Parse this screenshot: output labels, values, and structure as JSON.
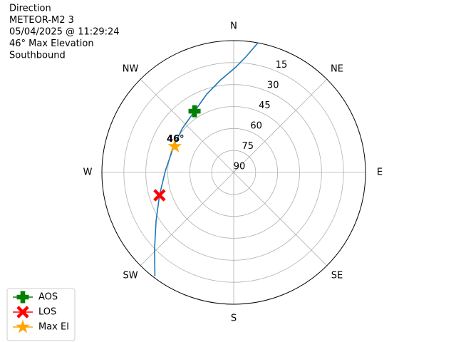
{
  "chart_data": {
    "type": "polar",
    "title_lines": [
      "Direction",
      "METEOR-M2 3",
      "05/04/2025 @ 11:29:24",
      "46° Max Elevation",
      "Southbound"
    ],
    "xlim": [
      0,
      360
    ],
    "xticks": [
      {
        "value": 0,
        "label": "N"
      },
      {
        "value": 45,
        "label": "NE"
      },
      {
        "value": 90,
        "label": "E"
      },
      {
        "value": 135,
        "label": "SE"
      },
      {
        "value": 180,
        "label": "S"
      },
      {
        "value": 225,
        "label": "SW"
      },
      {
        "value": 270,
        "label": "W"
      },
      {
        "value": 315,
        "label": "NW"
      }
    ],
    "ylim": [
      90,
      0
    ],
    "yticks": [
      15,
      30,
      45,
      60,
      75,
      90
    ],
    "grid": true,
    "legend": "lower left",
    "series": [
      {
        "color": "#1f77b4",
        "x": [
          10.6,
          6,
          0.8,
          352,
          341,
          327.4,
          310.7,
          293.8,
          271.2,
          252.9,
          238,
          225.8,
          217.2
        ],
        "values": [
          0,
          10.7,
          18.5,
          26.2,
          33.5,
          40.4,
          43.8,
          45.3,
          43.3,
          37,
          27.5,
          14.6,
          1
        ]
      },
      {
        "name": "AOS",
        "color": "#008000",
        "marker": "plus",
        "x": [
          327.4
        ],
        "values": [
          40.4
        ]
      },
      {
        "name": "LOS",
        "color": "#ff0000",
        "marker": "x",
        "x": [
          252.9
        ],
        "values": [
          37
        ]
      },
      {
        "name": "Max El",
        "color": "#ffa500",
        "marker": "star",
        "x": [
          293.8
        ],
        "values": [
          46
        ]
      }
    ],
    "annotations": [
      {
        "text": "46°",
        "x": 293.8,
        "y": 46
      }
    ]
  }
}
